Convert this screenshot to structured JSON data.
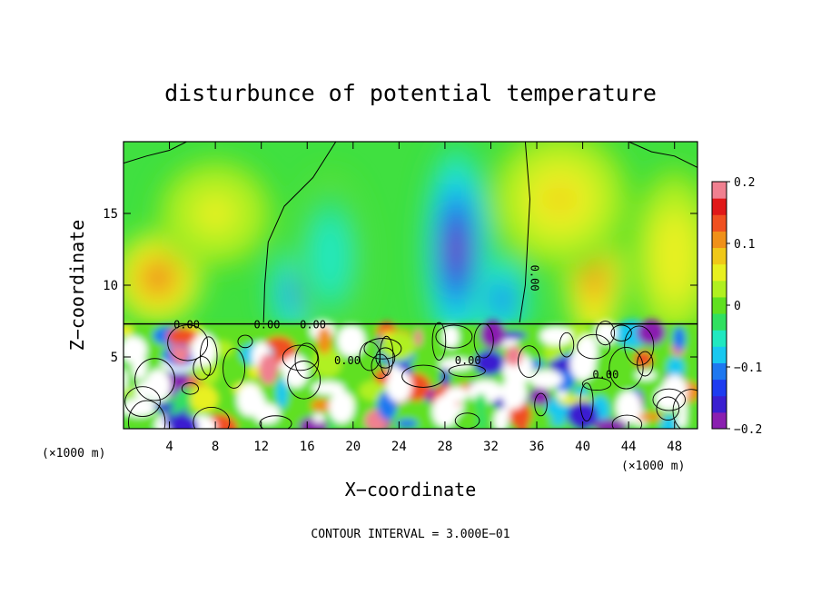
{
  "chart_data": {
    "type": "heatmap",
    "title": "disturbunce of potential temperature",
    "xlabel": "X−coordinate",
    "ylabel": "Z−coordinate",
    "xlim": [
      0,
      50
    ],
    "ylim": [
      0,
      20
    ],
    "x_ticks": [
      4,
      8,
      12,
      16,
      20,
      24,
      28,
      32,
      36,
      40,
      44,
      48
    ],
    "y_ticks": [
      5,
      10,
      15
    ],
    "x_unit_left": "(×1000 m)",
    "x_unit_right": "(×1000 m)",
    "colorbar": {
      "range": [
        -0.2,
        0.2
      ],
      "tick_labels": [
        "0.2",
        "0.1",
        "0",
        "−0.1",
        "−0.2"
      ],
      "tick_values": [
        0.2,
        0.1,
        0,
        -0.1,
        -0.2
      ]
    },
    "contour_interval_text": "CONTOUR INTERVAL = 3.000E−01",
    "contour_labels": [
      {
        "text": "0.00",
        "x": 5.5,
        "z": 7.0
      },
      {
        "text": "0.00",
        "x": 12.5,
        "z": 7.0
      },
      {
        "text": "0.00",
        "x": 16.5,
        "z": 7.0
      },
      {
        "text": "0.00",
        "x": 35.5,
        "z": 10.5
      },
      {
        "text": "0.00",
        "x": 19.5,
        "z": 4.5
      },
      {
        "text": "0.00",
        "x": 30.0,
        "z": 4.5
      },
      {
        "text": "0.00",
        "x": 42.0,
        "z": 3.5
      }
    ],
    "upper_layer_blobs": [
      {
        "x": 29,
        "z": 12.5,
        "value": -0.18,
        "sx": 2.4,
        "sz": 6.0
      },
      {
        "x": 33,
        "z": 9.0,
        "value": -0.12,
        "sx": 2.0,
        "sz": 2.5
      },
      {
        "x": 15,
        "z": 9.5,
        "value": -0.13,
        "sx": 2.0,
        "sz": 2.5
      },
      {
        "x": 18,
        "z": 12.0,
        "value": -0.06,
        "sx": 2.5,
        "sz": 4.5
      },
      {
        "x": 3,
        "z": 10.5,
        "value": 0.13,
        "sx": 3.0,
        "sz": 2.5
      },
      {
        "x": 41,
        "z": 11.0,
        "value": 0.12,
        "sx": 2.0,
        "sz": 4.0
      },
      {
        "x": 48,
        "z": 12.0,
        "value": 0.06,
        "sx": 3.0,
        "sz": 5.0
      },
      {
        "x": 38,
        "z": 16.0,
        "value": 0.07,
        "sx": 5.0,
        "sz": 4.0
      },
      {
        "x": 8,
        "z": 15.0,
        "value": 0.05,
        "sx": 4.0,
        "sz": 3.0
      }
    ]
  },
  "colors": {
    "scale": [
      "#8a1fb0",
      "#3a1fd0",
      "#1e3cf0",
      "#1e78f0",
      "#18c8f0",
      "#20e8c0",
      "#30e060",
      "#60e020",
      "#b0f020",
      "#e8f020",
      "#f0c818",
      "#f09018",
      "#f05020",
      "#e01818",
      "#f08090"
    ]
  }
}
